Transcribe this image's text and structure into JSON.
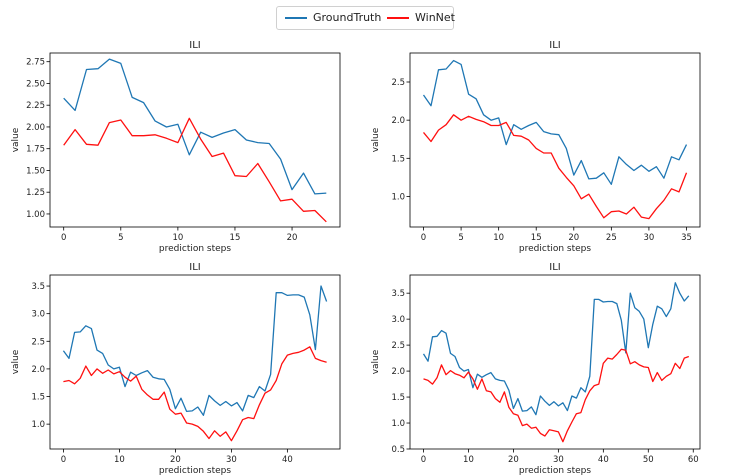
{
  "legend": {
    "series": [
      {
        "name": "GroundTruth",
        "color": "#1f77b4"
      },
      {
        "name": "WinNet",
        "color": "#ff1010"
      }
    ]
  },
  "chart_data": [
    {
      "type": "line",
      "title": "ILI",
      "xlabel": "prediction steps",
      "ylabel": "value",
      "xlim": [
        -1.2,
        24.2
      ],
      "ylim": [
        0.85,
        2.85
      ],
      "xticks": [
        0,
        5,
        10,
        15,
        20
      ],
      "yticks": [
        1.0,
        1.25,
        1.5,
        1.75,
        2.0,
        2.25,
        2.5,
        2.75
      ],
      "ytick_labels": [
        "1.00",
        "1.25",
        "1.50",
        "1.75",
        "2.00",
        "2.25",
        "2.50",
        "2.75"
      ],
      "series": [
        {
          "name": "GroundTruth",
          "color": "#1f77b4",
          "values": [
            2.33,
            2.19,
            2.66,
            2.67,
            2.78,
            2.73,
            2.34,
            2.28,
            2.07,
            2.0,
            2.03,
            1.68,
            1.94,
            1.88,
            1.93,
            1.97,
            1.85,
            1.82,
            1.81,
            1.63,
            1.28,
            1.47,
            1.23,
            1.24
          ]
        },
        {
          "name": "WinNet",
          "color": "#ff1010",
          "values": [
            1.79,
            1.97,
            1.8,
            1.79,
            2.05,
            2.08,
            1.9,
            1.9,
            1.91,
            1.87,
            1.82,
            2.1,
            1.86,
            1.66,
            1.7,
            1.44,
            1.43,
            1.58,
            1.37,
            1.15,
            1.17,
            1.03,
            1.04,
            0.91
          ]
        }
      ]
    },
    {
      "type": "line",
      "title": "ILI",
      "xlabel": "prediction steps",
      "ylabel": "value",
      "xlim": [
        -1.8,
        36.8
      ],
      "ylim": [
        0.6,
        2.88
      ],
      "xticks": [
        0,
        5,
        10,
        15,
        20,
        25,
        30,
        35
      ],
      "yticks": [
        1.0,
        1.5,
        2.0,
        2.5
      ],
      "ytick_labels": [
        "1.0",
        "1.5",
        "2.0",
        "2.5"
      ],
      "series": [
        {
          "name": "GroundTruth",
          "color": "#1f77b4",
          "values": [
            2.33,
            2.19,
            2.66,
            2.67,
            2.78,
            2.73,
            2.34,
            2.28,
            2.07,
            2.0,
            2.03,
            1.68,
            1.94,
            1.88,
            1.93,
            1.97,
            1.85,
            1.82,
            1.81,
            1.63,
            1.28,
            1.47,
            1.23,
            1.24,
            1.31,
            1.16,
            1.52,
            1.42,
            1.34,
            1.41,
            1.33,
            1.39,
            1.24,
            1.52,
            1.48,
            1.68
          ]
        },
        {
          "name": "WinNet",
          "color": "#ff1010",
          "values": [
            1.84,
            1.72,
            1.87,
            1.94,
            2.07,
            2.0,
            2.05,
            2.01,
            1.98,
            1.93,
            1.93,
            1.97,
            1.8,
            1.79,
            1.74,
            1.63,
            1.57,
            1.57,
            1.37,
            1.25,
            1.14,
            0.97,
            1.03,
            0.87,
            0.72,
            0.8,
            0.81,
            0.77,
            0.86,
            0.73,
            0.71,
            0.84,
            0.95,
            1.1,
            1.06,
            1.31
          ]
        }
      ]
    },
    {
      "type": "line",
      "title": "ILI",
      "xlabel": "prediction steps",
      "ylabel": "value",
      "xlim": [
        -2.4,
        49.4
      ],
      "ylim": [
        0.55,
        3.7
      ],
      "xticks": [
        0,
        10,
        20,
        30,
        40
      ],
      "yticks": [
        1.0,
        1.5,
        2.0,
        2.5,
        3.0,
        3.5
      ],
      "ytick_labels": [
        "1.0",
        "1.5",
        "2.0",
        "2.5",
        "3.0",
        "3.5"
      ],
      "series": [
        {
          "name": "GroundTruth",
          "color": "#1f77b4",
          "values": [
            2.33,
            2.19,
            2.66,
            2.67,
            2.78,
            2.73,
            2.34,
            2.28,
            2.07,
            2.0,
            2.03,
            1.68,
            1.94,
            1.88,
            1.93,
            1.97,
            1.85,
            1.82,
            1.81,
            1.63,
            1.28,
            1.47,
            1.23,
            1.24,
            1.31,
            1.16,
            1.52,
            1.42,
            1.34,
            1.41,
            1.33,
            1.39,
            1.24,
            1.52,
            1.48,
            1.68,
            1.6,
            1.9,
            3.38,
            3.38,
            3.33,
            3.34,
            3.34,
            3.3,
            2.98,
            2.35,
            3.5,
            3.22
          ]
        },
        {
          "name": "WinNet",
          "color": "#ff1010",
          "values": [
            1.77,
            1.79,
            1.73,
            1.83,
            2.05,
            1.88,
            2.0,
            1.92,
            1.98,
            1.91,
            1.95,
            1.85,
            1.78,
            1.87,
            1.63,
            1.53,
            1.45,
            1.45,
            1.58,
            1.27,
            1.18,
            1.2,
            1.02,
            1.0,
            0.96,
            0.87,
            0.74,
            0.88,
            0.78,
            0.86,
            0.7,
            0.88,
            1.08,
            1.12,
            1.1,
            1.35,
            1.56,
            1.62,
            1.79,
            2.09,
            2.25,
            2.28,
            2.3,
            2.34,
            2.4,
            2.19,
            2.15,
            2.12
          ]
        }
      ]
    },
    {
      "type": "line",
      "title": "ILI",
      "xlabel": "prediction steps",
      "ylabel": "value",
      "xlim": [
        -3.0,
        61.5
      ],
      "ylim": [
        0.5,
        3.85
      ],
      "xticks": [
        0,
        10,
        20,
        30,
        40,
        50,
        60
      ],
      "yticks": [
        0.5,
        1.0,
        1.5,
        2.0,
        2.5,
        3.0,
        3.5
      ],
      "ytick_labels": [
        "0.5",
        "1.0",
        "1.5",
        "2.0",
        "2.5",
        "3.0",
        "3.5"
      ],
      "series": [
        {
          "name": "GroundTruth",
          "color": "#1f77b4",
          "values": [
            2.33,
            2.19,
            2.66,
            2.67,
            2.78,
            2.73,
            2.34,
            2.28,
            2.07,
            2.0,
            2.03,
            1.68,
            1.94,
            1.88,
            1.93,
            1.97,
            1.85,
            1.82,
            1.81,
            1.63,
            1.28,
            1.47,
            1.23,
            1.24,
            1.31,
            1.16,
            1.52,
            1.42,
            1.34,
            1.41,
            1.33,
            1.39,
            1.24,
            1.52,
            1.48,
            1.68,
            1.6,
            1.9,
            3.38,
            3.38,
            3.33,
            3.34,
            3.34,
            3.3,
            2.98,
            2.35,
            3.5,
            3.22,
            3.15,
            3.0,
            2.45,
            2.9,
            3.25,
            3.2,
            3.05,
            3.2,
            3.7,
            3.5,
            3.35,
            3.45
          ]
        },
        {
          "name": "WinNet",
          "color": "#ff1010",
          "values": [
            1.85,
            1.82,
            1.75,
            1.87,
            2.12,
            1.93,
            2.01,
            1.95,
            1.92,
            1.87,
            1.98,
            1.85,
            1.65,
            1.85,
            1.62,
            1.6,
            1.47,
            1.4,
            1.6,
            1.3,
            1.18,
            1.15,
            0.95,
            0.98,
            0.9,
            0.92,
            0.8,
            0.75,
            0.87,
            0.85,
            0.83,
            0.64,
            0.85,
            1.02,
            1.18,
            1.2,
            1.45,
            1.62,
            1.72,
            1.75,
            2.15,
            2.25,
            2.23,
            2.32,
            2.42,
            2.4,
            2.14,
            2.18,
            2.12,
            2.08,
            2.07,
            1.8,
            1.97,
            1.82,
            1.9,
            1.95,
            2.15,
            2.05,
            2.25,
            2.28
          ]
        }
      ]
    }
  ]
}
